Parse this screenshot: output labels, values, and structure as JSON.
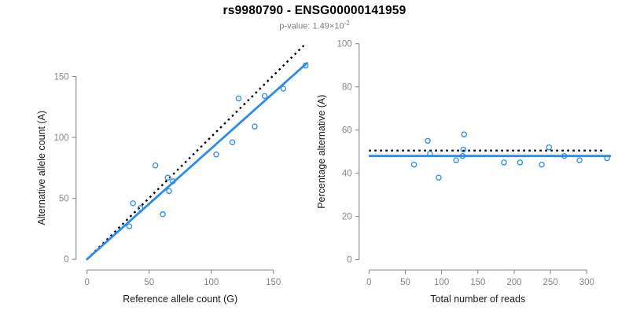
{
  "header": {
    "title": "rs9980790 - ENSG00000141959",
    "pvalue_base": "p-value: 1.49×10",
    "pvalue_exponent": "-2"
  },
  "colors": {
    "accent_blue": "#2b8cee",
    "identity_black": "#000000",
    "axis_gray": "#888888",
    "tick_label_gray": "#858585",
    "axis_title_color": "#1a1a1a",
    "subtitle_gray": "#7d7d7d",
    "background": "#ffffff"
  },
  "chart_data": [
    {
      "type": "scatter",
      "name": "allele-counts",
      "xlabel": "Reference allele count (G)",
      "ylabel": "Alternative allele count (A)",
      "xticks": [
        0,
        50,
        100,
        150
      ],
      "yticks": [
        0,
        50,
        100,
        150
      ],
      "xlim": [
        0,
        178
      ],
      "ylim": [
        0,
        178
      ],
      "grid": false,
      "points": [
        [
          34,
          27
        ],
        [
          37,
          46
        ],
        [
          43,
          42
        ],
        [
          55,
          77
        ],
        [
          61,
          37
        ],
        [
          65,
          67
        ],
        [
          66,
          56
        ],
        [
          69,
          64
        ],
        [
          104,
          86
        ],
        [
          117,
          96
        ],
        [
          122,
          132
        ],
        [
          135,
          109
        ],
        [
          143,
          134
        ],
        [
          158,
          140
        ],
        [
          176,
          159
        ]
      ],
      "fit_line": {
        "x1": 0,
        "y1": 0,
        "x2": 177,
        "y2": 161
      },
      "identity_line": {
        "x1": 0,
        "y1": 0,
        "x2": 176,
        "y2": 177
      }
    },
    {
      "type": "scatter",
      "name": "percentage-vs-total-reads",
      "xlabel": "Total number of reads",
      "ylabel": "Percentage alternative (A)",
      "xticks": [
        0,
        50,
        100,
        150,
        200,
        250,
        300
      ],
      "yticks": [
        0,
        20,
        40,
        60,
        80,
        100
      ],
      "xlim": [
        0,
        335
      ],
      "ylim": [
        0,
        100
      ],
      "grid": false,
      "points": [
        [
          62,
          44
        ],
        [
          81,
          55
        ],
        [
          84,
          49
        ],
        [
          96,
          38
        ],
        [
          120,
          46
        ],
        [
          129,
          48
        ],
        [
          130,
          51
        ],
        [
          131,
          58
        ],
        [
          186,
          45
        ],
        [
          208,
          45
        ],
        [
          238,
          44
        ],
        [
          248,
          52
        ],
        [
          269,
          48
        ],
        [
          290,
          46
        ],
        [
          328,
          47
        ]
      ],
      "fit_line": {
        "x1": 1,
        "y1": 48,
        "x2": 332,
        "y2": 48
      },
      "identity_line": {
        "x1": 0,
        "y1": 50.5,
        "x2": 326,
        "y2": 50.5
      }
    }
  ]
}
